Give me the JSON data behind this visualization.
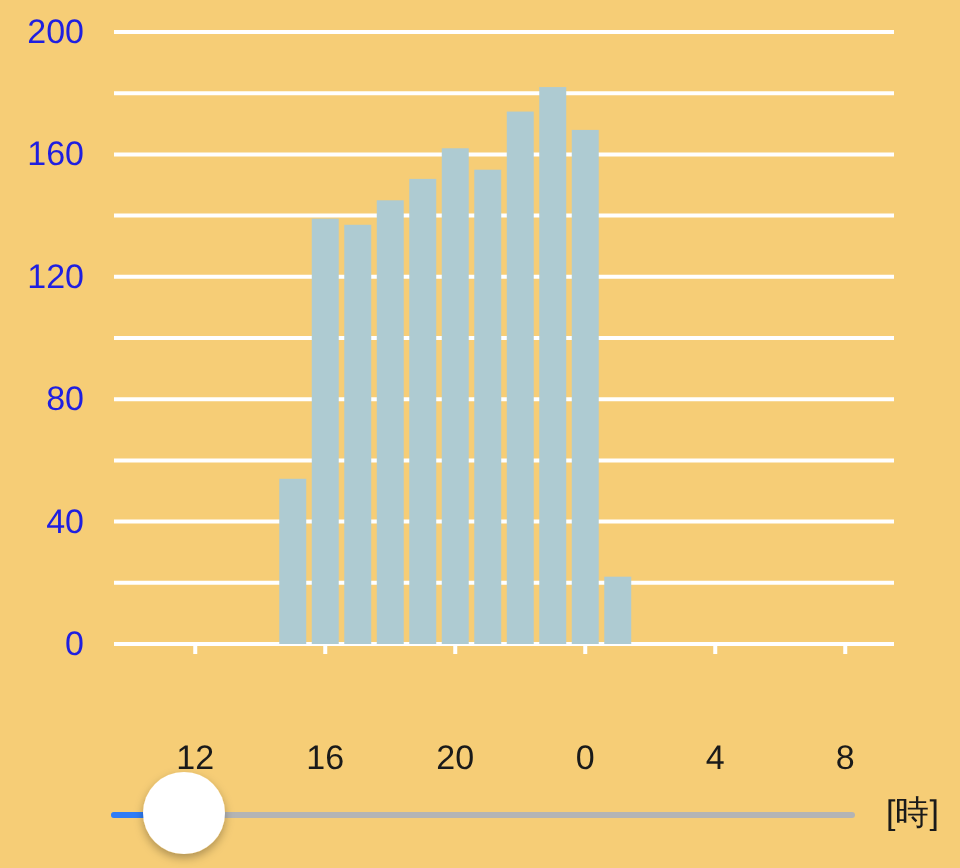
{
  "chart_data": {
    "type": "bar",
    "xlabel": "[時]",
    "categories": [
      null,
      null,
      "12",
      null,
      null,
      null,
      "16",
      null,
      null,
      null,
      "20",
      null,
      null,
      null,
      "0",
      null,
      null,
      null,
      "4",
      null,
      null,
      null,
      "8",
      null
    ],
    "values": [
      null,
      null,
      null,
      null,
      null,
      54,
      139,
      137,
      145,
      152,
      162,
      155,
      174,
      182,
      168,
      22,
      null,
      null,
      null,
      null,
      null,
      null,
      null,
      null
    ],
    "color": "#aecbd2",
    "ylim": [
      0,
      200
    ],
    "yticks": [
      0,
      {
        "value": 20,
        "label": null
      },
      40,
      {
        "value": 60,
        "label": null
      },
      80,
      {
        "value": 100,
        "label": null
      },
      120,
      {
        "value": 140,
        "label": null
      },
      160,
      {
        "value": 180,
        "label": null
      },
      200
    ],
    "grid": "y"
  }
}
